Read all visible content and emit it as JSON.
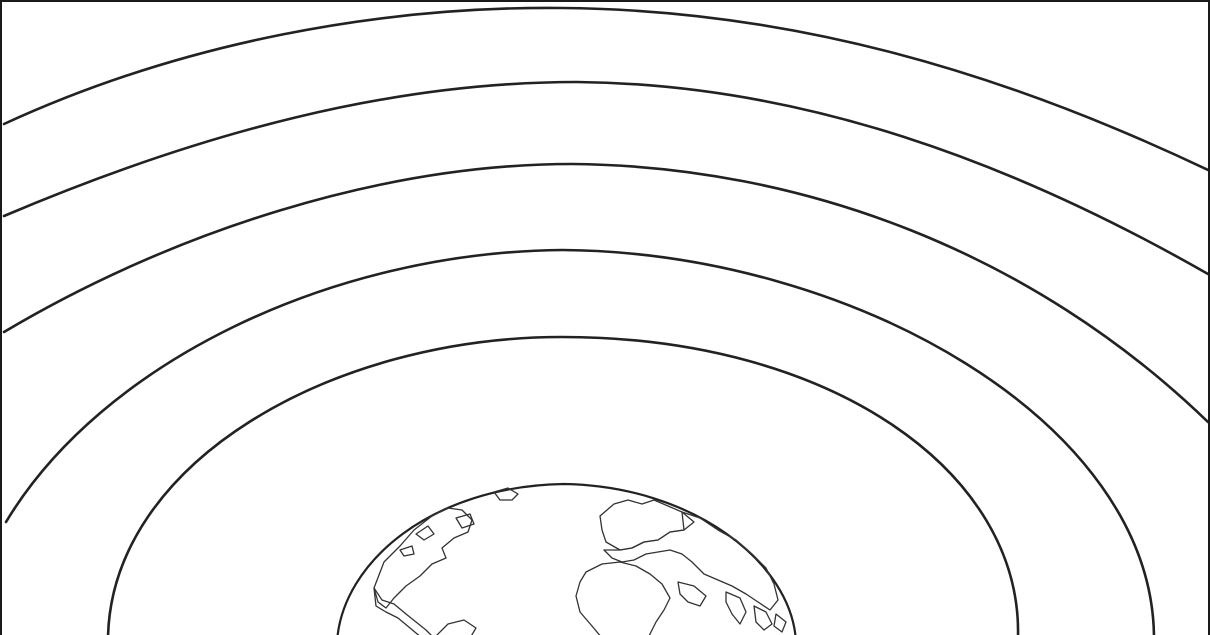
{
  "diagram": {
    "layer_count": 5,
    "layers": [
      {
        "index": 1
      },
      {
        "index": 2
      },
      {
        "index": 3
      },
      {
        "index": 4
      },
      {
        "index": 5
      }
    ],
    "center_object": "earth-globe",
    "icon": "globe-icon",
    "colors": {
      "background": "#ffffff",
      "line": "#222222",
      "frame": "#1a1a1a"
    }
  }
}
